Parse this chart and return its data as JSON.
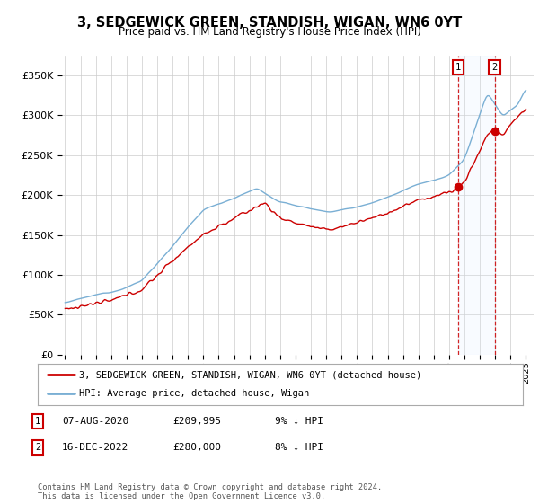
{
  "title": "3, SEDGEWICK GREEN, STANDISH, WIGAN, WN6 0YT",
  "subtitle": "Price paid vs. HM Land Registry's House Price Index (HPI)",
  "ylabel_ticks": [
    "£0",
    "£50K",
    "£100K",
    "£150K",
    "£200K",
    "£250K",
    "£300K",
    "£350K"
  ],
  "ytick_vals": [
    0,
    50000,
    100000,
    150000,
    200000,
    250000,
    300000,
    350000
  ],
  "ylim": [
    0,
    375000
  ],
  "xlim_start": 1994.8,
  "xlim_end": 2025.5,
  "grid_color": "#cccccc",
  "bg_color": "#ffffff",
  "plot_bg_color": "#ffffff",
  "hpi_color": "#7aafd4",
  "sold_color": "#cc0000",
  "span_color": "#ddeeff",
  "dashed_color": "#cc0000",
  "marker1_date": 2020.6,
  "marker2_date": 2022.96,
  "marker1_price": 209995,
  "marker2_price": 280000,
  "legend_sold_label": "3, SEDGEWICK GREEN, STANDISH, WIGAN, WN6 0YT (detached house)",
  "legend_hpi_label": "HPI: Average price, detached house, Wigan",
  "annotation1_label": "07-AUG-2020",
  "annotation1_price": "£209,995",
  "annotation1_hpi": "9% ↓ HPI",
  "annotation2_label": "16-DEC-2022",
  "annotation2_price": "£280,000",
  "annotation2_hpi": "8% ↓ HPI",
  "footer": "Contains HM Land Registry data © Crown copyright and database right 2024.\nThis data is licensed under the Open Government Licence v3.0.",
  "xtick_years": [
    1995,
    1996,
    1997,
    1998,
    1999,
    2000,
    2001,
    2002,
    2003,
    2004,
    2005,
    2006,
    2007,
    2008,
    2009,
    2010,
    2011,
    2012,
    2013,
    2014,
    2015,
    2016,
    2017,
    2018,
    2019,
    2020,
    2021,
    2022,
    2023,
    2024,
    2025
  ]
}
